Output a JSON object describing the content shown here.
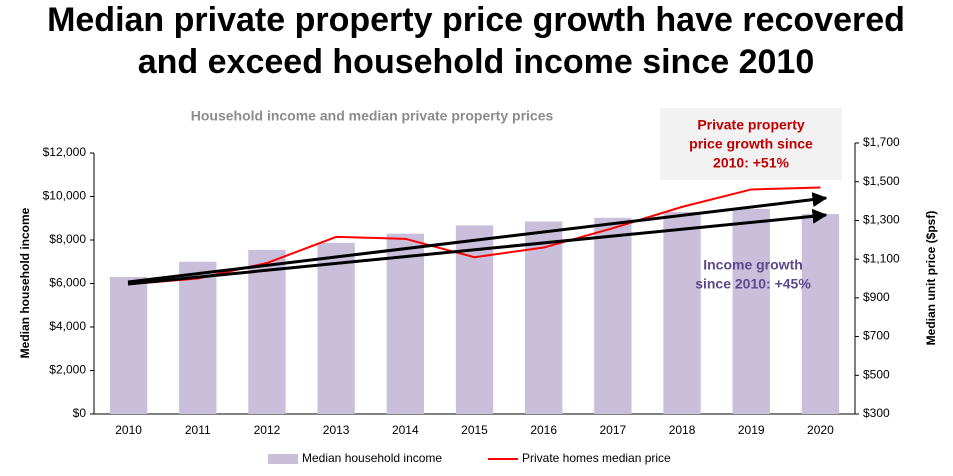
{
  "chart_data": {
    "type": "bar-line",
    "title": [
      "Median private property price growth have recovered",
      "and exceed household income since 2010"
    ],
    "subtitle": "Household income and median private property prices",
    "y_label": "Median household income",
    "y2_label": "Median unit price ($psf)",
    "categories": [
      "2010",
      "2011",
      "2012",
      "2013",
      "2014",
      "2015",
      "2016",
      "2017",
      "2018",
      "2019",
      "2020"
    ],
    "series": [
      {
        "name": "Median household income",
        "color": "#c9bfdb",
        "kind": "bar",
        "values": [
          6300,
          7000,
          7550,
          7870,
          8290,
          8670,
          8850,
          9020,
          9290,
          9430,
          9190
        ]
      },
      {
        "name": "Private homes median price",
        "color": "#ff0000",
        "kind": "line",
        "axis": "y2",
        "values": [
          970,
          1000,
          1080,
          1215,
          1205,
          1110,
          1160,
          1260,
          1370,
          1460,
          1470
        ]
      }
    ],
    "ylim": [
      0,
      12000
    ],
    "yticks": [
      {
        "value": 0,
        "label": "$0"
      },
      {
        "value": 2000,
        "label": "$2,000"
      },
      {
        "value": 4000,
        "label": "$4,000"
      },
      {
        "value": 6000,
        "label": "$6,000"
      },
      {
        "value": 8000,
        "label": "$8,000"
      },
      {
        "value": 10000,
        "label": "$10,000"
      },
      {
        "value": 12000,
        "label": "$12,000"
      }
    ],
    "y2lim": [
      300,
      1700
    ],
    "y2ticks": [
      {
        "value": 300,
        "label": "$300"
      },
      {
        "value": 500,
        "label": "$500"
      },
      {
        "value": 700,
        "label": "$700"
      },
      {
        "value": 900,
        "label": "$900"
      },
      {
        "value": 1100,
        "label": "$1,100"
      },
      {
        "value": 1300,
        "label": "$1,300"
      },
      {
        "value": 1500,
        "label": "$1,500"
      },
      {
        "value": 1700,
        "label": "$1,700"
      }
    ],
    "annotations": [
      {
        "lines": [
          "Private property",
          "price growth since",
          "2010: +51%"
        ],
        "color": "#c00000"
      },
      {
        "lines": [
          "Income growth",
          "since 2010: +45%"
        ],
        "color": "#5b4a8b"
      }
    ]
  }
}
